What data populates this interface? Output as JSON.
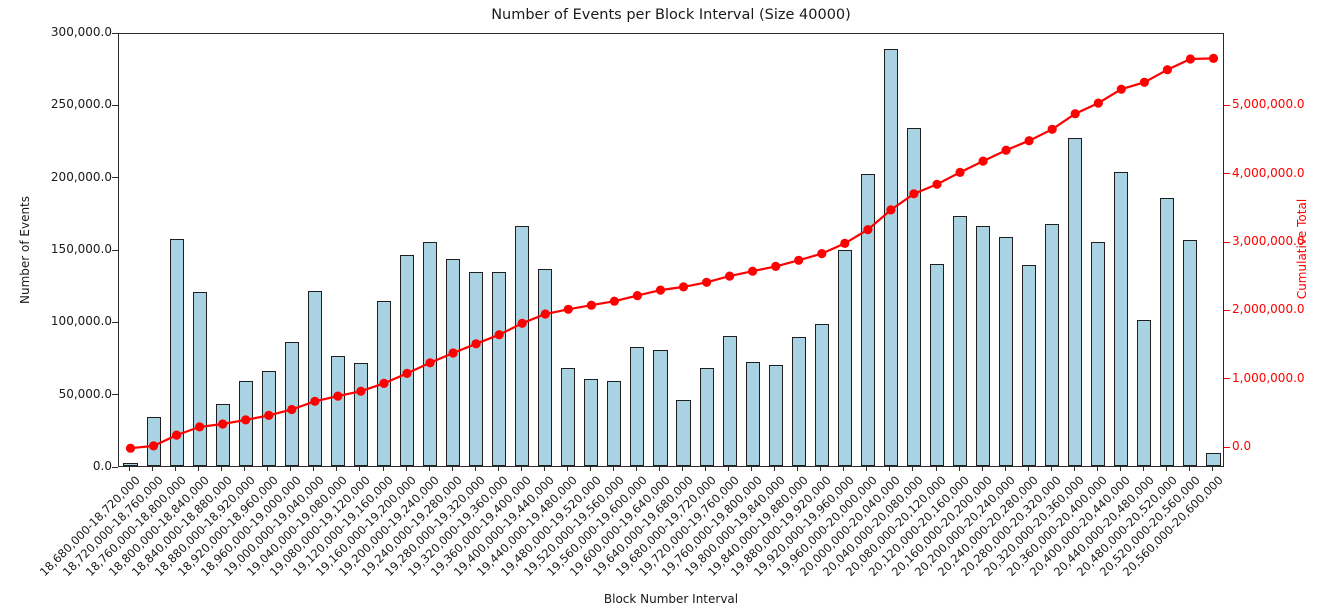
{
  "chart_data": {
    "type": "bar",
    "title": "Number of Events per Block Interval (Size 40000)",
    "xlabel": "Block Number Interval",
    "ylabel": "Number of Events",
    "ylabel_right": "Cumulative Total",
    "grid": false,
    "legend": "none",
    "categories": [
      "18,680,000-18,720,000",
      "18,720,000-18,760,000",
      "18,760,000-18,800,000",
      "18,800,000-18,840,000",
      "18,840,000-18,880,000",
      "18,880,000-18,920,000",
      "18,920,000-18,960,000",
      "18,960,000-19,000,000",
      "19,000,000-19,040,000",
      "19,040,000-19,080,000",
      "19,080,000-19,120,000",
      "19,120,000-19,160,000",
      "19,160,000-19,200,000",
      "19,200,000-19,240,000",
      "19,240,000-19,280,000",
      "19,280,000-19,320,000",
      "19,320,000-19,360,000",
      "19,360,000-19,400,000",
      "19,400,000-19,440,000",
      "19,440,000-19,480,000",
      "19,480,000-19,520,000",
      "19,520,000-19,560,000",
      "19,560,000-19,600,000",
      "19,600,000-19,640,000",
      "19,640,000-19,680,000",
      "19,680,000-19,720,000",
      "19,720,000-19,760,000",
      "19,760,000-19,800,000",
      "19,800,000-19,840,000",
      "19,840,000-19,880,000",
      "19,880,000-19,920,000",
      "19,920,000-19,960,000",
      "19,960,000-20,000,000",
      "20,000,000-20,040,000",
      "20,040,000-20,080,000",
      "20,080,000-20,120,000",
      "20,120,000-20,160,000",
      "20,160,000-20,200,000",
      "20,200,000-20,240,000",
      "20,240,000-20,280,000",
      "20,280,000-20,320,000",
      "20,320,000-20,360,000",
      "20,360,000-20,400,000",
      "20,400,000-20,440,000",
      "20,440,000-20,480,000",
      "20,480,000-20,520,000",
      "20,520,000-20,560,000",
      "20,560,000-20,600,000"
    ],
    "series": [
      {
        "name": "Number of Events",
        "type": "bar",
        "axis": "left",
        "color": "#a9d3e2",
        "edge_color": "#1f1f1f",
        "values": [
          2000,
          34000,
          157000,
          120000,
          43000,
          59000,
          66000,
          86000,
          121000,
          76000,
          71000,
          114000,
          146000,
          155000,
          143000,
          134000,
          134000,
          166000,
          136000,
          68000,
          60000,
          59000,
          82000,
          80000,
          46000,
          68000,
          90000,
          72000,
          70000,
          89000,
          98000,
          149000,
          202000,
          288000,
          234000,
          140000,
          173000,
          166000,
          158000,
          139000,
          167000,
          227000,
          155000,
          203000,
          101000,
          185000,
          156000,
          9000
        ]
      },
      {
        "name": "Cumulative Total",
        "type": "line",
        "axis": "right",
        "color": "#ff0000",
        "marker": "circle",
        "values": [
          2000,
          36000,
          193000,
          313000,
          356000,
          415000,
          481000,
          567000,
          688000,
          764000,
          835000,
          949000,
          1095000,
          1250000,
          1393000,
          1527000,
          1661000,
          1827000,
          1963000,
          2031000,
          2091000,
          2150000,
          2232000,
          2312000,
          2358000,
          2426000,
          2516000,
          2588000,
          2658000,
          2747000,
          2845000,
          2994000,
          3196000,
          3484000,
          3718000,
          3858000,
          4031000,
          4197000,
          4355000,
          4494000,
          4661000,
          4888000,
          5043000,
          5246000,
          5347000,
          5532000,
          5688000,
          5697000
        ]
      }
    ],
    "ylim_left": [
      0,
      300000
    ],
    "ylim_right": [
      -287000,
      6053000
    ],
    "yticks_left": {
      "values": [
        0,
        50000,
        100000,
        150000,
        200000,
        250000,
        300000
      ],
      "labels": [
        "0.0",
        "50,000.0",
        "100,000.0",
        "150,000.0",
        "200,000.0",
        "250,000.0",
        "300,000.0"
      ]
    },
    "yticks_right": {
      "values": [
        0,
        1000000,
        2000000,
        3000000,
        4000000,
        5000000
      ],
      "labels": [
        "0.0",
        "1,000,000.0",
        "2,000,000.0",
        "3,000,000.0",
        "4,000,000.0",
        "5,000,000.0"
      ]
    },
    "colors": {
      "bar_fill": "#a9d3e2",
      "bar_edge": "#1f1f1f",
      "line": "#ff0000",
      "right_axis_text": "#ff0000",
      "spine": "#2b2b2b",
      "text": "#1a1a1a"
    }
  }
}
